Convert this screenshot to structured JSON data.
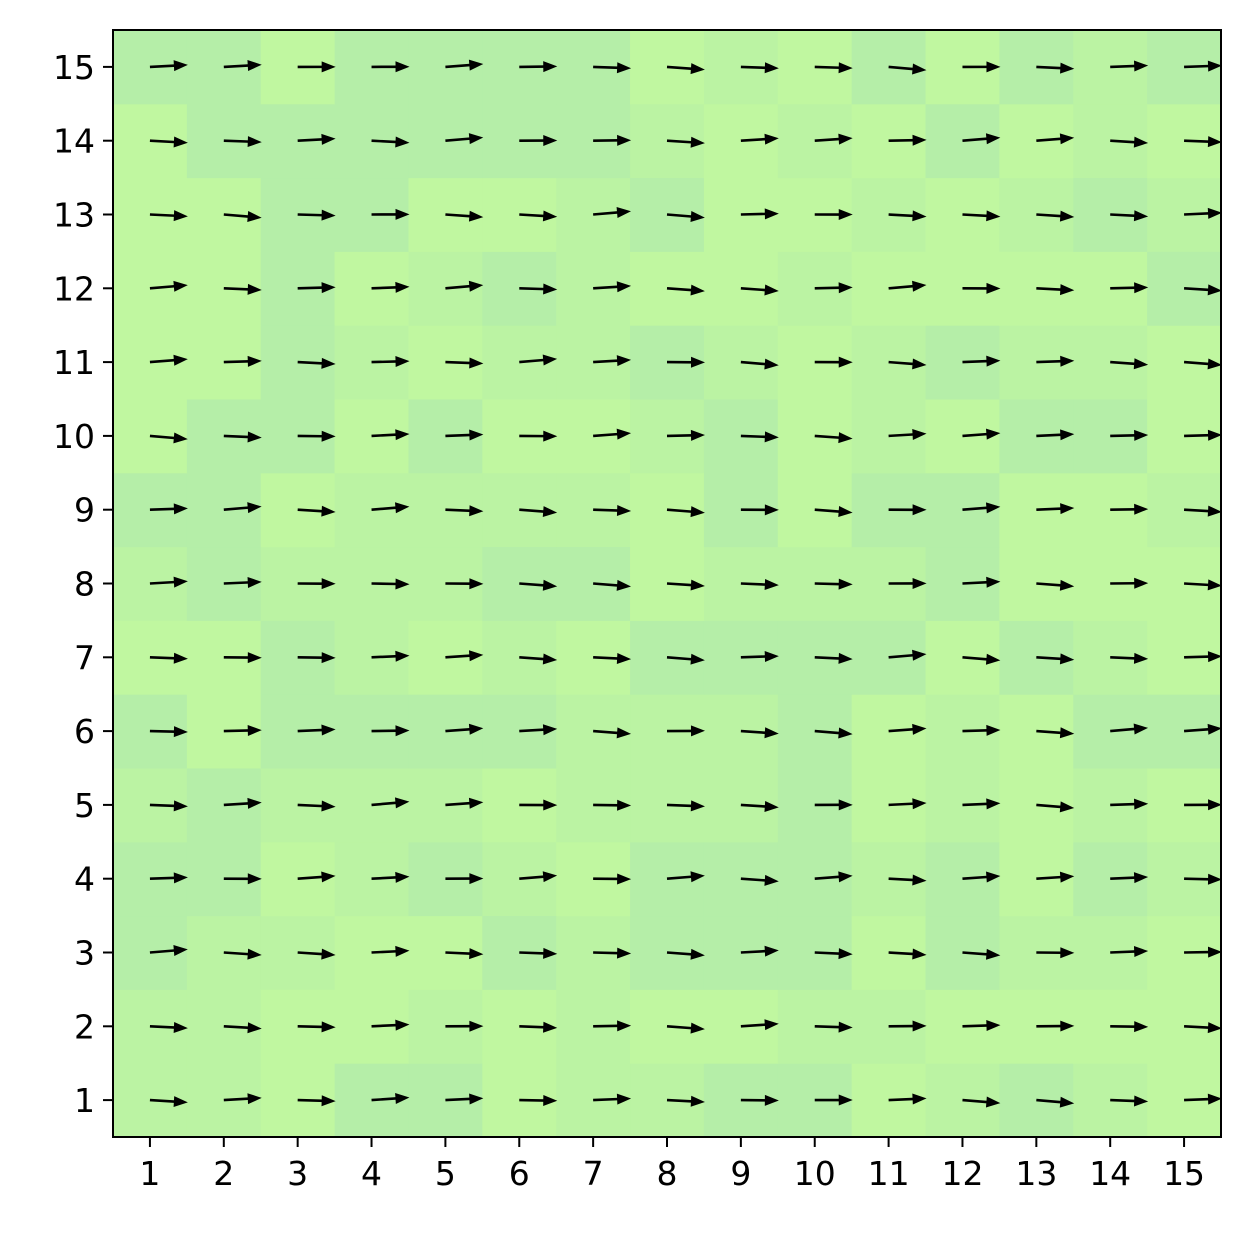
{
  "chart_data": {
    "type": "quiver",
    "title": "",
    "xlabel": "",
    "ylabel": "",
    "x": [
      1,
      2,
      3,
      4,
      5,
      6,
      7,
      8,
      9,
      10,
      11,
      12,
      13,
      14,
      15
    ],
    "y": [
      1,
      2,
      3,
      4,
      5,
      6,
      7,
      8,
      9,
      10,
      11,
      12,
      13,
      14,
      15
    ],
    "xlim": [
      0.5,
      15.5
    ],
    "ylim": [
      0.5,
      15.5
    ],
    "xticks": [
      "1",
      "2",
      "3",
      "4",
      "5",
      "6",
      "7",
      "8",
      "9",
      "10",
      "11",
      "12",
      "13",
      "14",
      "15"
    ],
    "yticks": [
      "1",
      "2",
      "3",
      "4",
      "5",
      "6",
      "7",
      "8",
      "9",
      "10",
      "11",
      "12",
      "13",
      "14",
      "15"
    ],
    "grid": false,
    "vector_direction_deg": 0,
    "vector_direction_note": "all vectors point in +x direction (approx. 0° with slight random tilt)",
    "background": "heatmap of light green shades",
    "colors": {
      "heatmap_light": "#c0f7a0",
      "heatmap_mid": "#bbf3a3",
      "heatmap_dark": "#b5eea8",
      "arrow": "#000000",
      "axes": "#000000"
    }
  }
}
